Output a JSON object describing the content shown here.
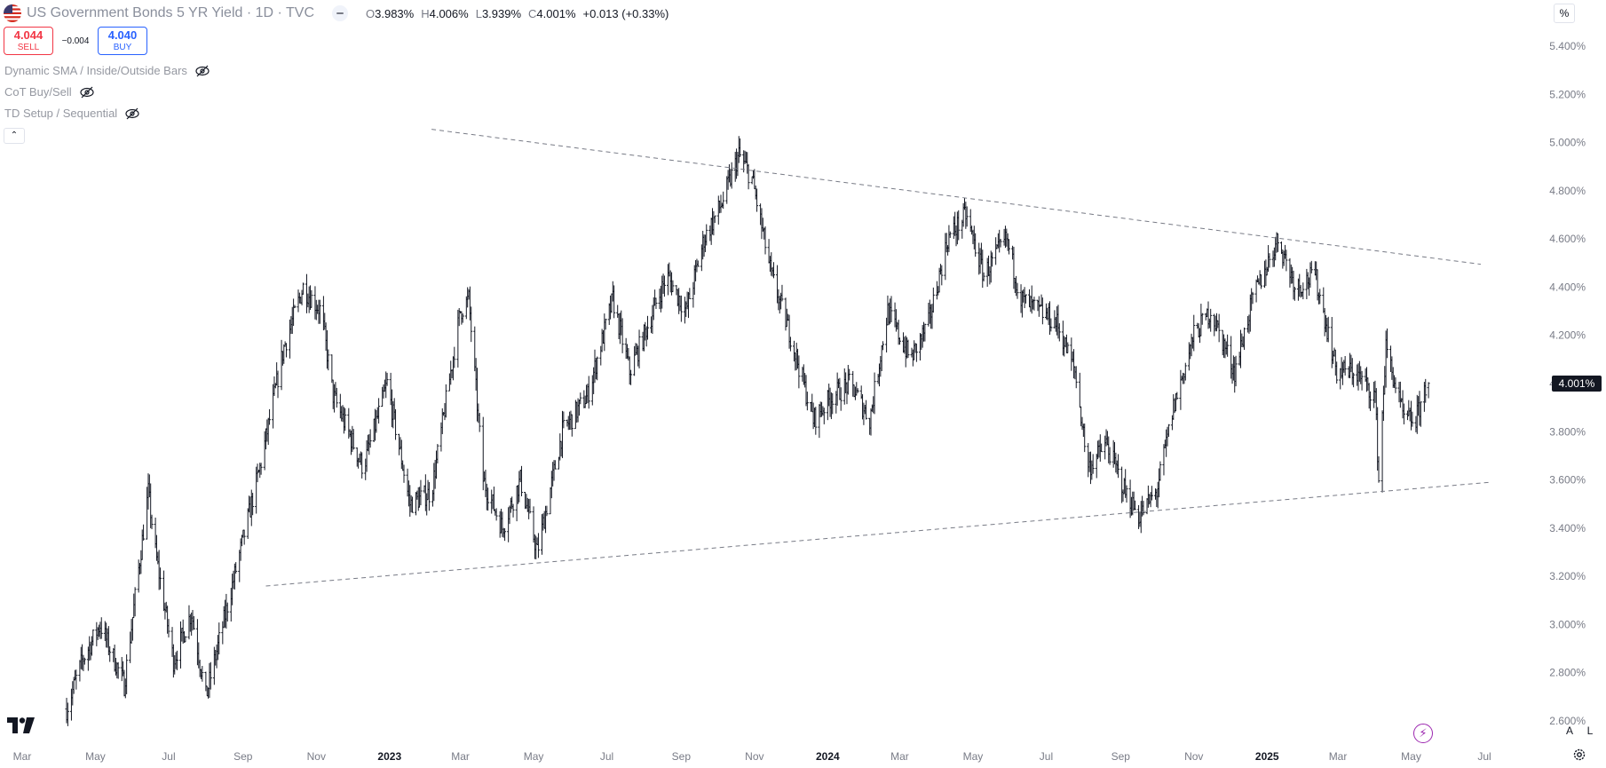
{
  "header": {
    "title": "US Government Bonds 5 YR Yield · 1D · TVC",
    "ohlc": [
      {
        "key": "O",
        "value": "3.983%"
      },
      {
        "key": "H",
        "value": "4.006%"
      },
      {
        "key": "L",
        "value": "3.939%"
      },
      {
        "key": "C",
        "value": "4.001%"
      }
    ],
    "change": "+0.013 (+0.33%)"
  },
  "trade": {
    "sell_price": "4.044",
    "sell_label": "SELL",
    "spread": "−0.004",
    "buy_price": "4.040",
    "buy_label": "BUY"
  },
  "indicators": [
    "Dynamic SMA / Inside/Outside Bars",
    "CoT Buy/Sell",
    "TD Setup / Sequential"
  ],
  "price_scale": {
    "unit": "%",
    "current_price_label": "4.001%",
    "auto_label": "A",
    "log_label": "L"
  },
  "colors": {
    "bars": "#131722",
    "trendlines": "#787b86",
    "axis_text": "#787b86",
    "sell": "#f23645",
    "buy": "#2962ff",
    "bolt": "#9c27b0"
  },
  "icons": [
    "us-flag-icon",
    "eye-off-icon",
    "chevron-up-icon",
    "tradingview-logo-icon",
    "lightning-icon",
    "gear-icon"
  ],
  "chart_data": {
    "type": "ohlc",
    "title": "US Government Bonds 5 YR Yield · 1D · TVC",
    "ylim": [
      2.6,
      5.4
    ],
    "y_ticks": [
      "5.400%",
      "5.200%",
      "5.000%",
      "4.800%",
      "4.600%",
      "4.400%",
      "4.200%",
      "4.000%",
      "3.800%",
      "3.600%",
      "3.400%",
      "3.200%",
      "3.000%",
      "2.800%",
      "2.600%"
    ],
    "x_ticks": [
      {
        "label": "Mar",
        "date": "2022-03-01",
        "bold": false
      },
      {
        "label": "May",
        "date": "2022-05-01",
        "bold": false
      },
      {
        "label": "Jul",
        "date": "2022-07-01",
        "bold": false
      },
      {
        "label": "Sep",
        "date": "2022-09-01",
        "bold": false
      },
      {
        "label": "Nov",
        "date": "2022-11-01",
        "bold": false
      },
      {
        "label": "2023",
        "date": "2023-01-01",
        "bold": true
      },
      {
        "label": "Mar",
        "date": "2023-03-01",
        "bold": false
      },
      {
        "label": "May",
        "date": "2023-05-01",
        "bold": false
      },
      {
        "label": "Jul",
        "date": "2023-07-01",
        "bold": false
      },
      {
        "label": "Sep",
        "date": "2023-09-01",
        "bold": false
      },
      {
        "label": "Nov",
        "date": "2023-11-01",
        "bold": false
      },
      {
        "label": "2024",
        "date": "2024-01-01",
        "bold": true
      },
      {
        "label": "Mar",
        "date": "2024-03-01",
        "bold": false
      },
      {
        "label": "May",
        "date": "2024-05-01",
        "bold": false
      },
      {
        "label": "Jul",
        "date": "2024-07-01",
        "bold": false
      },
      {
        "label": "Sep",
        "date": "2024-09-01",
        "bold": false
      },
      {
        "label": "Nov",
        "date": "2024-11-01",
        "bold": false
      },
      {
        "label": "2025",
        "date": "2025-01-01",
        "bold": true
      },
      {
        "label": "Mar",
        "date": "2025-03-01",
        "bold": false
      },
      {
        "label": "May",
        "date": "2025-05-01",
        "bold": false
      },
      {
        "label": "Jul",
        "date": "2025-07-01",
        "bold": false
      }
    ],
    "close_path": [
      {
        "date": "2022-04-07",
        "value": 2.65
      },
      {
        "date": "2022-04-20",
        "value": 2.85
      },
      {
        "date": "2022-05-05",
        "value": 3.0
      },
      {
        "date": "2022-05-25",
        "value": 2.75
      },
      {
        "date": "2022-06-14",
        "value": 3.55
      },
      {
        "date": "2022-06-20",
        "value": 3.3
      },
      {
        "date": "2022-07-05",
        "value": 2.85
      },
      {
        "date": "2022-07-20",
        "value": 3.05
      },
      {
        "date": "2022-08-01",
        "value": 2.7
      },
      {
        "date": "2022-08-20",
        "value": 3.1
      },
      {
        "date": "2022-09-15",
        "value": 3.65
      },
      {
        "date": "2022-10-05",
        "value": 4.15
      },
      {
        "date": "2022-10-21",
        "value": 4.4
      },
      {
        "date": "2022-11-05",
        "value": 4.3
      },
      {
        "date": "2022-11-15",
        "value": 3.95
      },
      {
        "date": "2022-12-10",
        "value": 3.65
      },
      {
        "date": "2022-12-30",
        "value": 4.0
      },
      {
        "date": "2023-01-18",
        "value": 3.5
      },
      {
        "date": "2023-02-05",
        "value": 3.55
      },
      {
        "date": "2023-03-01",
        "value": 4.3
      },
      {
        "date": "2023-03-08",
        "value": 4.35
      },
      {
        "date": "2023-03-20",
        "value": 3.6
      },
      {
        "date": "2023-04-05",
        "value": 3.4
      },
      {
        "date": "2023-04-20",
        "value": 3.6
      },
      {
        "date": "2023-05-04",
        "value": 3.3
      },
      {
        "date": "2023-05-25",
        "value": 3.8
      },
      {
        "date": "2023-06-15",
        "value": 3.95
      },
      {
        "date": "2023-07-06",
        "value": 4.35
      },
      {
        "date": "2023-07-20",
        "value": 4.05
      },
      {
        "date": "2023-08-01",
        "value": 4.2
      },
      {
        "date": "2023-08-20",
        "value": 4.45
      },
      {
        "date": "2023-09-05",
        "value": 4.3
      },
      {
        "date": "2023-09-20",
        "value": 4.6
      },
      {
        "date": "2023-10-05",
        "value": 4.75
      },
      {
        "date": "2023-10-19",
        "value": 4.95
      },
      {
        "date": "2023-10-30",
        "value": 4.85
      },
      {
        "date": "2023-11-15",
        "value": 4.45
      },
      {
        "date": "2023-12-01",
        "value": 4.2
      },
      {
        "date": "2023-12-20",
        "value": 3.85
      },
      {
        "date": "2024-01-05",
        "value": 3.95
      },
      {
        "date": "2024-01-20",
        "value": 4.0
      },
      {
        "date": "2024-02-05",
        "value": 3.85
      },
      {
        "date": "2024-02-20",
        "value": 4.3
      },
      {
        "date": "2024-03-10",
        "value": 4.1
      },
      {
        "date": "2024-03-25",
        "value": 4.25
      },
      {
        "date": "2024-04-10",
        "value": 4.6
      },
      {
        "date": "2024-04-25",
        "value": 4.7
      },
      {
        "date": "2024-05-10",
        "value": 4.45
      },
      {
        "date": "2024-05-29",
        "value": 4.6
      },
      {
        "date": "2024-06-10",
        "value": 4.35
      },
      {
        "date": "2024-06-25",
        "value": 4.3
      },
      {
        "date": "2024-07-10",
        "value": 4.25
      },
      {
        "date": "2024-07-25",
        "value": 4.05
      },
      {
        "date": "2024-08-05",
        "value": 3.65
      },
      {
        "date": "2024-08-20",
        "value": 3.75
      },
      {
        "date": "2024-09-05",
        "value": 3.55
      },
      {
        "date": "2024-09-16",
        "value": 3.45
      },
      {
        "date": "2024-10-01",
        "value": 3.55
      },
      {
        "date": "2024-10-15",
        "value": 3.9
      },
      {
        "date": "2024-11-01",
        "value": 4.2
      },
      {
        "date": "2024-11-15",
        "value": 4.3
      },
      {
        "date": "2024-12-05",
        "value": 4.05
      },
      {
        "date": "2024-12-20",
        "value": 4.35
      },
      {
        "date": "2025-01-10",
        "value": 4.6
      },
      {
        "date": "2025-01-25",
        "value": 4.4
      },
      {
        "date": "2025-02-10",
        "value": 4.45
      },
      {
        "date": "2025-02-28",
        "value": 4.05
      },
      {
        "date": "2025-03-15",
        "value": 4.05
      },
      {
        "date": "2025-04-01",
        "value": 3.95
      },
      {
        "date": "2025-04-04",
        "value": 3.6
      },
      {
        "date": "2025-04-10",
        "value": 4.15
      },
      {
        "date": "2025-04-25",
        "value": 3.85
      },
      {
        "date": "2025-05-05",
        "value": 3.85
      },
      {
        "date": "2025-05-14",
        "value": 4.0
      }
    ],
    "trendlines": [
      {
        "name": "upper",
        "start": {
          "date": "2023-02-05",
          "value": 5.055
        },
        "end": {
          "date": "2025-06-28",
          "value": 4.495
        }
      },
      {
        "name": "lower",
        "start": {
          "date": "2022-09-20",
          "value": 3.16
        },
        "end": {
          "date": "2025-07-05",
          "value": 3.59
        }
      }
    ]
  }
}
